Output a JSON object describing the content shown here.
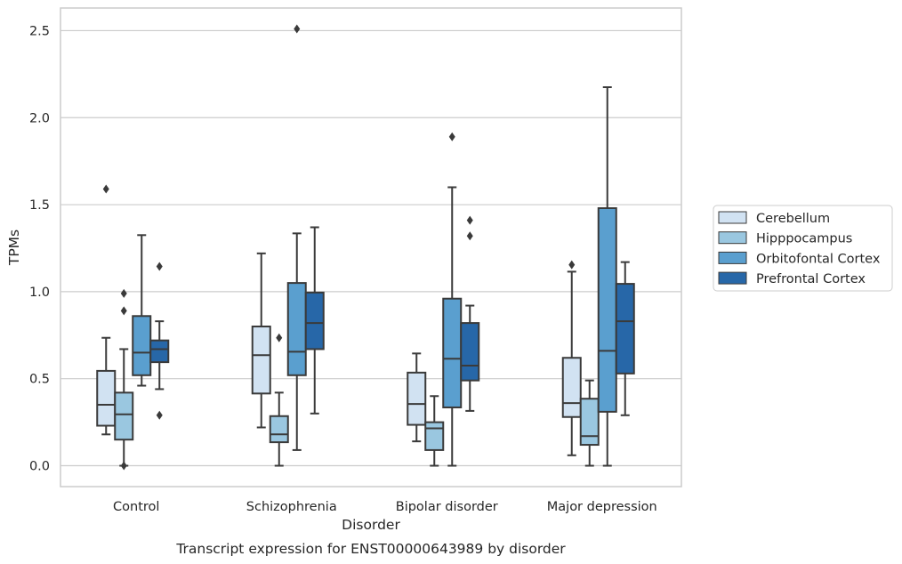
{
  "chart_data": {
    "type": "boxplot",
    "caption": "Transcript expression for ENST00000643989 by disorder",
    "xlabel": "Disorder",
    "ylabel": "TPMs",
    "ylim": [
      -0.12,
      2.63
    ],
    "yticks": [
      "0.0",
      "0.5",
      "1.0",
      "1.5",
      "2.0",
      "2.5"
    ],
    "grid": "horizontal",
    "legend_position": "right",
    "categories": [
      "Control",
      "Schizophrenia",
      "Bipolar disorder",
      "Major depression"
    ],
    "series": [
      {
        "name": "Cerebellum",
        "color": "#d1e2f2",
        "boxes": [
          {
            "whislo": 0.18,
            "q1": 0.23,
            "med": 0.35,
            "q3": 0.545,
            "whishi": 0.735,
            "fliers": [
              1.59
            ]
          },
          {
            "whislo": 0.22,
            "q1": 0.415,
            "med": 0.635,
            "q3": 0.8,
            "whishi": 1.22,
            "fliers": []
          },
          {
            "whislo": 0.14,
            "q1": 0.235,
            "med": 0.355,
            "q3": 0.535,
            "whishi": 0.645,
            "fliers": []
          },
          {
            "whislo": 0.06,
            "q1": 0.28,
            "med": 0.36,
            "q3": 0.62,
            "whishi": 1.115,
            "fliers": [
              1.155
            ]
          }
        ]
      },
      {
        "name": "Hipppocampus",
        "color": "#9ac7e0",
        "boxes": [
          {
            "whislo": 0.0,
            "q1": 0.15,
            "med": 0.295,
            "q3": 0.42,
            "whishi": 0.67,
            "fliers": [
              0.0,
              0.89,
              0.99
            ]
          },
          {
            "whislo": 0.0,
            "q1": 0.135,
            "med": 0.18,
            "q3": 0.285,
            "whishi": 0.42,
            "fliers": [
              0.735
            ]
          },
          {
            "whislo": 0.0,
            "q1": 0.09,
            "med": 0.215,
            "q3": 0.25,
            "whishi": 0.4,
            "fliers": []
          },
          {
            "whislo": 0.0,
            "q1": 0.12,
            "med": 0.17,
            "q3": 0.385,
            "whishi": 0.49,
            "fliers": []
          }
        ]
      },
      {
        "name": "Orbitofontal Cortex",
        "color": "#5a9fcf",
        "boxes": [
          {
            "whislo": 0.46,
            "q1": 0.52,
            "med": 0.65,
            "q3": 0.86,
            "whishi": 1.325,
            "fliers": []
          },
          {
            "whislo": 0.09,
            "q1": 0.52,
            "med": 0.655,
            "q3": 1.05,
            "whishi": 1.335,
            "fliers": [
              2.51
            ]
          },
          {
            "whislo": 0.0,
            "q1": 0.335,
            "med": 0.615,
            "q3": 0.96,
            "whishi": 1.6,
            "fliers": [
              1.89
            ]
          },
          {
            "whislo": 0.0,
            "q1": 0.31,
            "med": 0.66,
            "q3": 1.48,
            "whishi": 2.175,
            "fliers": []
          }
        ]
      },
      {
        "name": "Prefrontal Cortex",
        "color": "#2767a8",
        "boxes": [
          {
            "whislo": 0.44,
            "q1": 0.595,
            "med": 0.67,
            "q3": 0.72,
            "whishi": 0.83,
            "fliers": [
              0.29,
              1.145
            ]
          },
          {
            "whislo": 0.3,
            "q1": 0.67,
            "med": 0.82,
            "q3": 0.995,
            "whishi": 1.37,
            "fliers": []
          },
          {
            "whislo": 0.315,
            "q1": 0.49,
            "med": 0.575,
            "q3": 0.82,
            "whishi": 0.92,
            "fliers": [
              1.32,
              1.41
            ]
          },
          {
            "whislo": 0.29,
            "q1": 0.53,
            "med": 0.83,
            "q3": 1.045,
            "whishi": 1.17,
            "fliers": []
          }
        ]
      }
    ]
  }
}
